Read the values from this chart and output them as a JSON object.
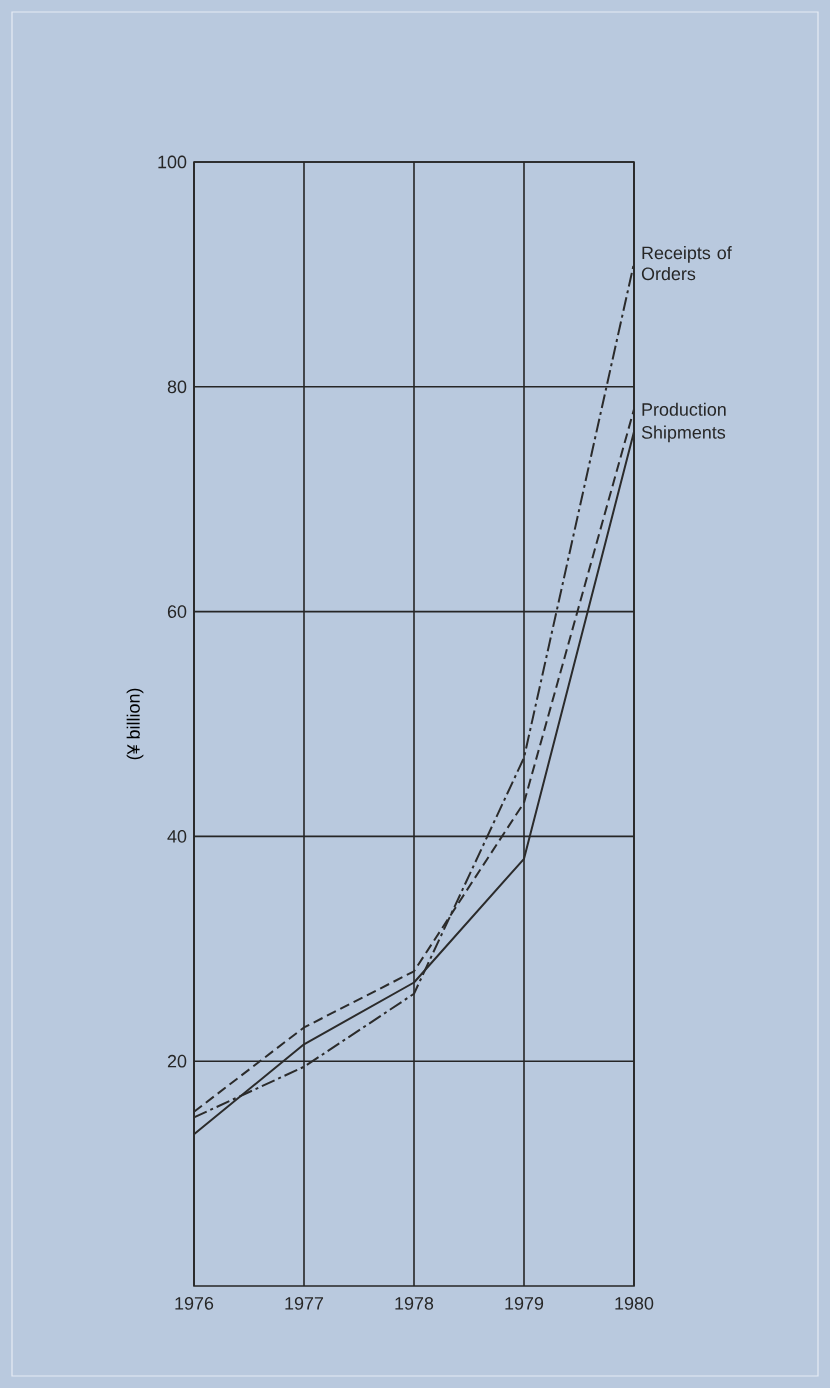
{
  "chart_data": {
    "type": "line",
    "ylabel": "(¥ billion)",
    "x": [
      1976,
      1977,
      1978,
      1979,
      1980
    ],
    "series": [
      {
        "name": "Receipts of Orders",
        "color": "#2b2b2b",
        "line_style": "dashdot",
        "values": [
          15,
          19.5,
          26,
          47,
          91
        ]
      },
      {
        "name": "Production",
        "color": "#2b2b2b",
        "line_style": "dashed",
        "values": [
          15.5,
          23,
          28,
          43,
          78
        ]
      },
      {
        "name": "Shipments",
        "color": "#2b2b2b",
        "line_style": "solid",
        "values": [
          13.5,
          21.5,
          27,
          38,
          76
        ]
      }
    ],
    "xlim": [
      1976,
      1980
    ],
    "ylim": [
      0,
      100
    ],
    "xticks": [
      1976,
      1977,
      1978,
      1979,
      1980
    ],
    "yticks": [
      20,
      40,
      60,
      80,
      100
    ],
    "grid": true,
    "marker": "none"
  }
}
